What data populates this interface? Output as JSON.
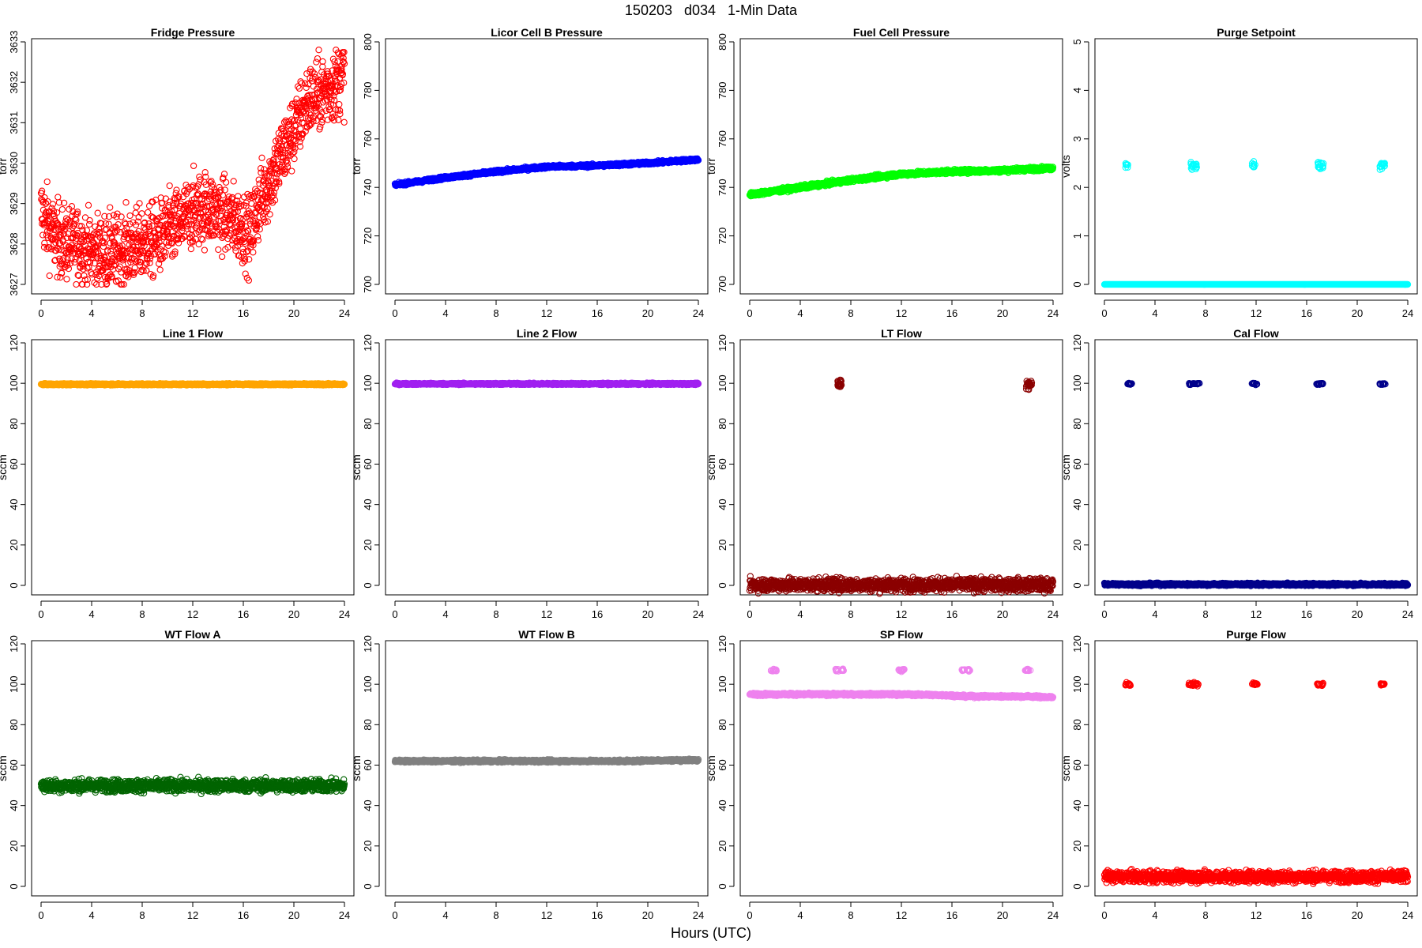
{
  "page": {
    "title": "150203   d034   1-Min Data",
    "xlabel": "Hours (UTC)"
  },
  "chart_data": [
    {
      "type": "scatter",
      "title": "Fridge Pressure",
      "ylabel": "torr",
      "color": "#ff0000",
      "xlim": [
        0,
        24
      ],
      "ylim": [
        3627,
        3633
      ],
      "xticks": [
        0,
        4,
        8,
        12,
        16,
        20,
        24
      ],
      "yticks": [
        3627,
        3628,
        3629,
        3630,
        3631,
        3632,
        3633
      ],
      "series": [
        {
          "x": [
            0,
            1,
            2,
            3,
            4,
            5,
            6,
            7,
            8,
            9,
            10,
            11,
            12,
            13,
            14,
            15,
            16,
            16.5,
            17,
            18,
            19,
            20,
            21,
            22,
            23,
            24
          ],
          "values": [
            3628.8,
            3628.2,
            3628.0,
            3628.0,
            3627.8,
            3627.8,
            3627.8,
            3627.9,
            3628.0,
            3628.1,
            3628.3,
            3628.5,
            3628.8,
            3628.9,
            3628.8,
            3628.6,
            3628.4,
            3628.2,
            3628.8,
            3629.5,
            3630.2,
            3630.8,
            3631.5,
            3631.7,
            3631.9,
            3632.2
          ],
          "spread": 0.45,
          "min_y": 3627.0,
          "max_y": 3632.8
        }
      ]
    },
    {
      "type": "scatter",
      "title": "Licor Cell B Pressure",
      "ylabel": "torr",
      "color": "#0000ff",
      "xlim": [
        0,
        24
      ],
      "ylim": [
        700,
        800
      ],
      "xticks": [
        0,
        4,
        8,
        12,
        16,
        20,
        24
      ],
      "yticks": [
        700,
        720,
        740,
        760,
        780,
        800
      ],
      "series": [
        {
          "x": [
            0,
            4,
            8,
            12,
            16,
            20,
            24
          ],
          "values": [
            741,
            744,
            746.5,
            748.5,
            749,
            750,
            751.5
          ],
          "spread": 0.3
        }
      ]
    },
    {
      "type": "scatter",
      "title": "Fuel Cell Pressure",
      "ylabel": "torr",
      "color": "#00ff00",
      "xlim": [
        0,
        24
      ],
      "ylim": [
        700,
        800
      ],
      "xticks": [
        0,
        4,
        8,
        12,
        16,
        20,
        24
      ],
      "yticks": [
        700,
        720,
        740,
        760,
        780,
        800
      ],
      "series": [
        {
          "x": [
            0,
            4,
            8,
            12,
            16,
            20,
            24
          ],
          "values": [
            737,
            740,
            743,
            745.5,
            746.5,
            747,
            748
          ],
          "spread": 0.4
        }
      ]
    },
    {
      "type": "scatter",
      "title": "Purge Setpoint",
      "ylabel": "volts",
      "color": "#00ffff",
      "xlim": [
        0,
        24
      ],
      "ylim": [
        0,
        5
      ],
      "xticks": [
        0,
        4,
        8,
        12,
        16,
        20,
        24
      ],
      "yticks": [
        0,
        1,
        2,
        3,
        4,
        5
      ],
      "series": [
        {
          "x": [
            0,
            24
          ],
          "values": [
            0,
            0
          ],
          "spread": 0.0
        }
      ],
      "events": {
        "x": [
          1.8,
          6.9,
          7.2,
          11.8,
          16.9,
          17.2,
          21.9,
          22.1
        ],
        "y": 2.45,
        "spread": 0.04
      }
    },
    {
      "type": "scatter",
      "title": "Line 1 Flow",
      "ylabel": "sccm",
      "color": "#ffa500",
      "xlim": [
        0,
        24
      ],
      "ylim": [
        0,
        120
      ],
      "xticks": [
        0,
        4,
        8,
        12,
        16,
        20,
        24
      ],
      "yticks": [
        0,
        20,
        40,
        60,
        80,
        100,
        120
      ],
      "series": [
        {
          "x": [
            0,
            24
          ],
          "values": [
            99.5,
            99.5
          ],
          "spread": 0.2
        }
      ]
    },
    {
      "type": "scatter",
      "title": "Line 2 Flow",
      "ylabel": "sccm",
      "color": "#a020f0",
      "xlim": [
        0,
        24
      ],
      "ylim": [
        0,
        120
      ],
      "xticks": [
        0,
        4,
        8,
        12,
        16,
        20,
        24
      ],
      "yticks": [
        0,
        20,
        40,
        60,
        80,
        100,
        120
      ],
      "series": [
        {
          "x": [
            0,
            24
          ],
          "values": [
            99.7,
            99.7
          ],
          "spread": 0.2
        }
      ]
    },
    {
      "type": "scatter",
      "title": "LT Flow",
      "ylabel": "sccm",
      "color": "#8b0000",
      "xlim": [
        0,
        24
      ],
      "ylim": [
        0,
        120
      ],
      "xticks": [
        0,
        4,
        8,
        12,
        16,
        20,
        24
      ],
      "yticks": [
        0,
        20,
        40,
        60,
        80,
        100,
        120
      ],
      "series": [
        {
          "x": [
            0,
            24
          ],
          "values": [
            0.3,
            0.3
          ],
          "spread": 1.6
        }
      ],
      "events": {
        "x": [
          7.0,
          7.1,
          7.2,
          22.0,
          22.1,
          22.2
        ],
        "y": 99.5,
        "spread": 1.2
      }
    },
    {
      "type": "scatter",
      "title": "Cal Flow",
      "ylabel": "sccm",
      "color": "#00008b",
      "xlim": [
        0,
        24
      ],
      "ylim": [
        0,
        120
      ],
      "xticks": [
        0,
        4,
        8,
        12,
        16,
        20,
        24
      ],
      "yticks": [
        0,
        20,
        40,
        60,
        80,
        100,
        120
      ],
      "series": [
        {
          "x": [
            0,
            24
          ],
          "values": [
            0.5,
            0.5
          ],
          "spread": 0.3
        }
      ],
      "events": {
        "x": [
          1.9,
          2.1,
          6.8,
          7.1,
          7.4,
          11.8,
          12.0,
          16.9,
          17.2,
          21.9,
          22.1
        ],
        "y": 99.7,
        "spread": 0.2
      }
    },
    {
      "type": "scatter",
      "title": "WT Flow A",
      "ylabel": "sccm",
      "color": "#006400",
      "xlim": [
        0,
        24
      ],
      "ylim": [
        0,
        120
      ],
      "xticks": [
        0,
        4,
        8,
        12,
        16,
        20,
        24
      ],
      "yticks": [
        0,
        20,
        40,
        60,
        80,
        100,
        120
      ],
      "series": [
        {
          "x": [
            0,
            24
          ],
          "values": [
            49.8,
            49.8
          ],
          "spread": 1.5
        }
      ]
    },
    {
      "type": "scatter",
      "title": "WT Flow B",
      "ylabel": "sccm",
      "color": "#808080",
      "xlim": [
        0,
        24
      ],
      "ylim": [
        0,
        120
      ],
      "xticks": [
        0,
        4,
        8,
        12,
        16,
        20,
        24
      ],
      "yticks": [
        0,
        20,
        40,
        60,
        80,
        100,
        120
      ],
      "series": [
        {
          "x": [
            0,
            19,
            20,
            24
          ],
          "values": [
            62,
            62,
            62.3,
            62.5
          ],
          "spread": 0.3
        }
      ]
    },
    {
      "type": "scatter",
      "title": "SP Flow",
      "ylabel": "sccm",
      "color": "#ee82ee",
      "xlim": [
        0,
        24
      ],
      "ylim": [
        0,
        120
      ],
      "xticks": [
        0,
        4,
        8,
        12,
        16,
        20,
        24
      ],
      "yticks": [
        0,
        20,
        40,
        60,
        80,
        100,
        120
      ],
      "series": [
        {
          "x": [
            0,
            8,
            12,
            16,
            17,
            22,
            24
          ],
          "values": [
            95,
            95,
            95,
            94.5,
            94,
            94,
            93.5
          ],
          "spread": 0.3
        }
      ],
      "events": {
        "x": [
          1.8,
          2.0,
          6.9,
          7.3,
          11.9,
          12.1,
          16.9,
          17.3,
          21.9,
          22.1
        ],
        "y": 107,
        "spread": 0.3
      }
    },
    {
      "type": "scatter",
      "title": "Purge Flow",
      "ylabel": "sccm",
      "color": "#ff0000",
      "xlim": [
        0,
        24
      ],
      "ylim": [
        0,
        120
      ],
      "xticks": [
        0,
        4,
        8,
        12,
        16,
        20,
        24
      ],
      "yticks": [
        0,
        20,
        40,
        60,
        80,
        100,
        120
      ],
      "series": [
        {
          "x": [
            0,
            24
          ],
          "values": [
            4.8,
            4.8
          ],
          "spread": 1.4
        }
      ],
      "events": {
        "x": [
          1.8,
          2.0,
          6.8,
          7.0,
          7.3,
          11.8,
          12.0,
          16.9,
          17.2,
          21.9,
          22.1
        ],
        "y": 100,
        "spread": 0.4
      }
    }
  ]
}
